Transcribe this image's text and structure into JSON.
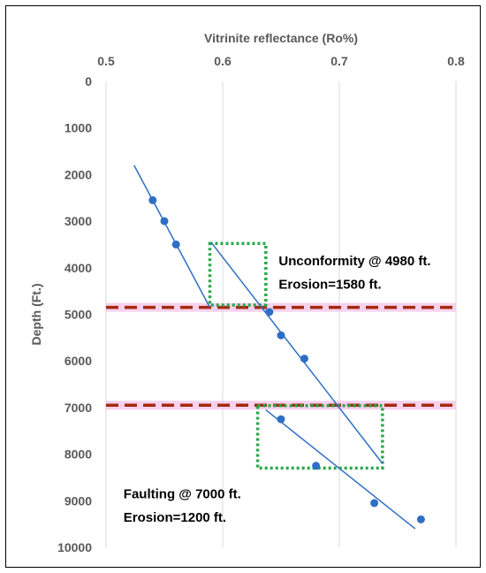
{
  "chart_data": {
    "type": "scatter",
    "title": "",
    "xlabel": "Vitrinite reflectance (Ro%)",
    "ylabel": "Depth (Ft.)",
    "xlim": [
      0.5,
      0.8
    ],
    "ylim": [
      0,
      10000
    ],
    "x_axis_position": "top",
    "y_axis_reversed": true,
    "grid": "vertical",
    "xticks": [
      "0.5",
      "0.6",
      "0.7",
      "0.8"
    ],
    "yticks": [
      "0",
      "1000",
      "2000",
      "3000",
      "4000",
      "5000",
      "6000",
      "7000",
      "8000",
      "9000",
      "10000"
    ],
    "points": [
      {
        "x": 0.54,
        "y": 2550
      },
      {
        "x": 0.55,
        "y": 3000
      },
      {
        "x": 0.56,
        "y": 3500
      },
      {
        "x": 0.64,
        "y": 4950
      },
      {
        "x": 0.65,
        "y": 5450
      },
      {
        "x": 0.67,
        "y": 5950
      },
      {
        "x": 0.65,
        "y": 7250
      },
      {
        "x": 0.68,
        "y": 8250
      },
      {
        "x": 0.73,
        "y": 9050
      },
      {
        "x": 0.77,
        "y": 9400
      }
    ],
    "point_color": "#2e6fc6",
    "trend_lines": [
      {
        "x": [
          0.524,
          0.589
        ],
        "y": [
          1800,
          4850
        ]
      },
      {
        "x": [
          0.59,
          0.737
        ],
        "y": [
          3450,
          8200
        ]
      },
      {
        "x": [
          0.637,
          0.765
        ],
        "y": [
          7050,
          9600
        ]
      }
    ],
    "trend_line_color": "#2e6fc6",
    "horizontal_lines": [
      {
        "y": 4850,
        "color": "#a52a0c",
        "style": "dashed",
        "highlight": "#f4c8ec"
      },
      {
        "y": 6950,
        "color": "#a52a0c",
        "style": "dashed",
        "highlight": "#f4c8ec"
      }
    ],
    "boxes": [
      {
        "x": [
          0.589,
          0.637
        ],
        "y": [
          3480,
          4800
        ],
        "color": "#2aa84a",
        "style": "dotted"
      },
      {
        "x": [
          0.63,
          0.737
        ],
        "y": [
          6960,
          8300
        ],
        "color": "#2aa84a",
        "style": "dotted"
      }
    ],
    "annotations": [
      {
        "text": "Unconformity @ 4980 ft.",
        "x": 0.648,
        "y": 3950
      },
      {
        "text": "Erosion=1580 ft.",
        "x": 0.648,
        "y": 4450
      },
      {
        "text": "Faulting @ 7000 ft.",
        "x": 0.515,
        "y": 8950
      },
      {
        "text": "Erosion=1200 ft.",
        "x": 0.515,
        "y": 9450
      }
    ]
  }
}
